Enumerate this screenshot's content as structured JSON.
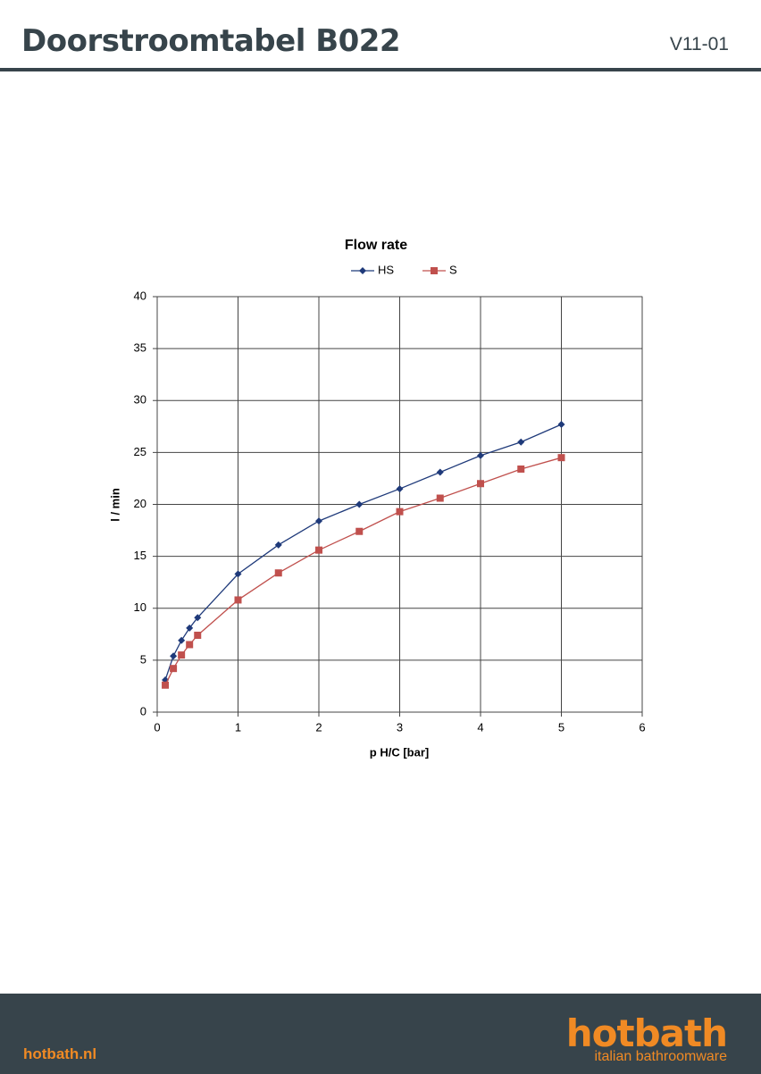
{
  "header": {
    "title": "Doorstroomtabel B022",
    "version": "V11-01"
  },
  "chart_data": {
    "type": "line",
    "title": "Flow rate",
    "xlabel": "p H/C [bar]",
    "ylabel": "l / min",
    "x": [
      0.1,
      0.2,
      0.3,
      0.4,
      0.5,
      1,
      1.5,
      2,
      2.5,
      3,
      3.5,
      4,
      4.5,
      5
    ],
    "series": [
      {
        "name": "HS",
        "color": "#1f3a7a",
        "marker": "diamond",
        "values": [
          3.1,
          5.4,
          6.9,
          8.1,
          9.1,
          13.3,
          16.1,
          18.4,
          20.0,
          21.5,
          23.1,
          24.7,
          26.0,
          27.7
        ]
      },
      {
        "name": "S",
        "color": "#c0504d",
        "marker": "square",
        "values": [
          2.6,
          4.2,
          5.5,
          6.5,
          7.4,
          10.8,
          13.4,
          15.6,
          17.4,
          19.3,
          20.6,
          22.0,
          23.4,
          24.5
        ]
      }
    ],
    "xlim": [
      0,
      6
    ],
    "xticks": [
      0,
      1,
      2,
      3,
      4,
      5,
      6
    ],
    "ylim": [
      0,
      40
    ],
    "yticks": [
      0,
      5,
      10,
      15,
      20,
      25,
      30,
      35,
      40
    ],
    "grid": true,
    "legend": "top"
  },
  "footer": {
    "website": "hotbath.nl",
    "brand": "hotbath",
    "tagline": "italian bathroomware"
  }
}
